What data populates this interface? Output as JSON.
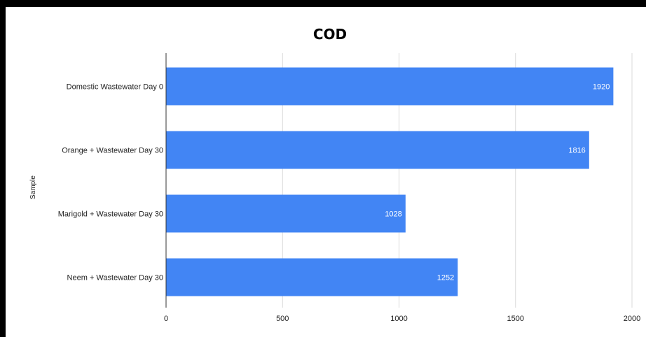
{
  "chart_data": {
    "type": "bar",
    "orientation": "horizontal",
    "title": "COD",
    "xlabel": "",
    "ylabel": "Sample",
    "categories": [
      "Domestic Wastewater Day 0",
      "Orange + Wastewater Day 30",
      "Marigold + Wastewater Day 30",
      "Neem + Wastewater Day 30"
    ],
    "values": [
      1920,
      1816,
      1028,
      1252
    ],
    "data_labels": [
      "1920",
      "1816",
      "1028",
      "1252"
    ],
    "xlim": [
      0,
      2000
    ],
    "xticks": [
      0,
      500,
      1000,
      1500,
      2000
    ],
    "xtick_labels": [
      "0",
      "500",
      "1000",
      "1500",
      "2000"
    ],
    "grid": true,
    "legend": "none",
    "bar_color": "#4285f4"
  }
}
